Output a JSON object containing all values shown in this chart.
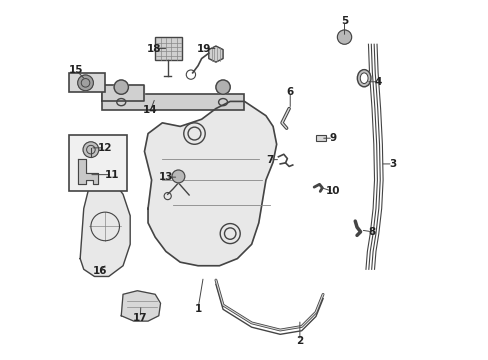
{
  "background_color": "#ffffff",
  "fig_width": 4.89,
  "fig_height": 3.6,
  "dpi": 100,
  "gray": "#444444",
  "lgray": "#888888",
  "fill_light": "#e8e8e8",
  "fill_mid": "#d0d0d0",
  "fill_dark": "#c0c0c0"
}
